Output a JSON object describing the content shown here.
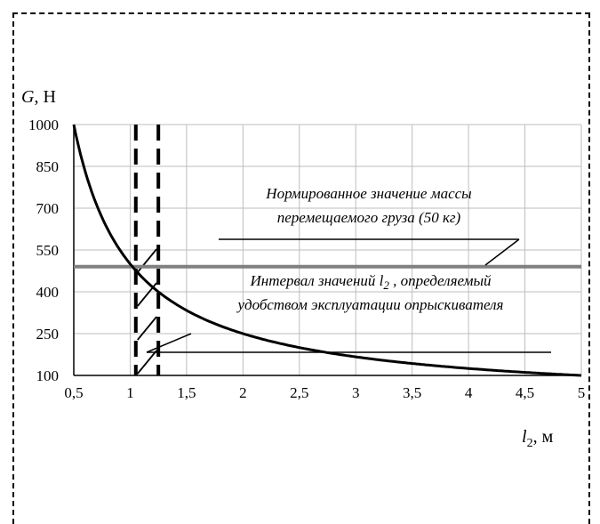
{
  "chart_data": {
    "type": "line",
    "ylabel": {
      "symbol": "G",
      "unit": ", Н"
    },
    "xlabel": {
      "symbol": "l",
      "sub": "2",
      "unit": ", м"
    },
    "xlim": [
      0.5,
      5
    ],
    "ylim": [
      100,
      1000
    ],
    "x_ticks": [
      "0,5",
      "1",
      "1,5",
      "2",
      "2,5",
      "3",
      "3,5",
      "4",
      "4,5",
      "5"
    ],
    "y_ticks": [
      "1000",
      "850",
      "700",
      "550",
      "400",
      "250",
      "100"
    ],
    "grid": true,
    "series": [
      {
        "values": [
          [
            0.5,
            1000
          ],
          [
            0.75,
            700
          ],
          [
            1.0,
            500
          ],
          [
            1.25,
            400
          ],
          [
            1.5,
            333
          ],
          [
            2.0,
            250
          ],
          [
            2.5,
            200
          ],
          [
            3.0,
            167
          ],
          [
            3.5,
            143
          ],
          [
            4.0,
            125
          ],
          [
            4.5,
            111
          ],
          [
            5.0,
            100
          ]
        ]
      }
    ],
    "reference_line": {
      "y": 490
    },
    "interval": {
      "x_from": 1.05,
      "x_to": 1.25
    },
    "annotations": {
      "norm_line1": "Нормированное значение массы",
      "norm_line2": "перемещаемого груза (50 кг)",
      "interval_line1_a": "Интервал значений ",
      "interval_line1_sym": "l",
      "interval_line1_sub": "2",
      "interval_line1_b": " , определяемый",
      "interval_line2": "удобством эксплуатации опрыскивателя"
    }
  }
}
